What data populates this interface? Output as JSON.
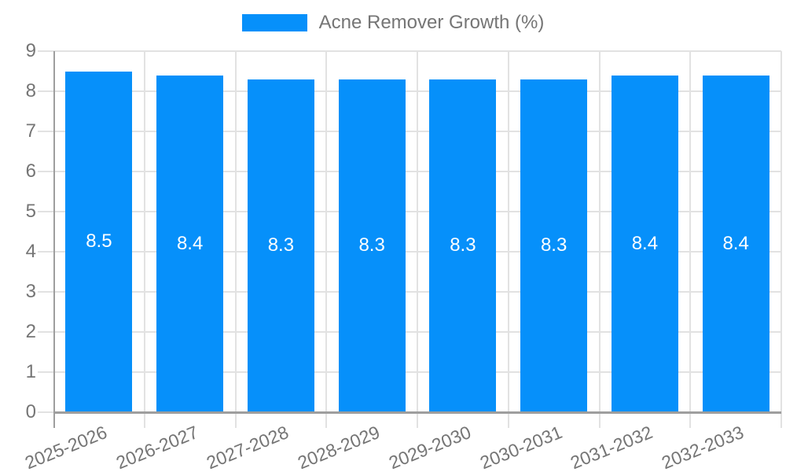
{
  "chart_data": {
    "type": "bar",
    "legend": "Acne Remover Growth (%)",
    "legend_position": "top",
    "categories": [
      "2025-2026",
      "2026-2027",
      "2027-2028",
      "2028-2029",
      "2029-2030",
      "2030-2031",
      "2031-2032",
      "2032-2033"
    ],
    "values": [
      8.5,
      8.4,
      8.3,
      8.3,
      8.3,
      8.3,
      8.4,
      8.4
    ],
    "yticks": [
      0,
      1,
      2,
      3,
      4,
      5,
      6,
      7,
      8,
      9
    ],
    "ylim": [
      0,
      9
    ],
    "grid": true,
    "bar_labels_inside": true
  },
  "colors": {
    "bar": "#0690fa",
    "grid": "#e2e2e2",
    "axis": "#9e9e9e",
    "text": "#757575",
    "bar_label": "#ffffff",
    "background": "#ffffff"
  }
}
